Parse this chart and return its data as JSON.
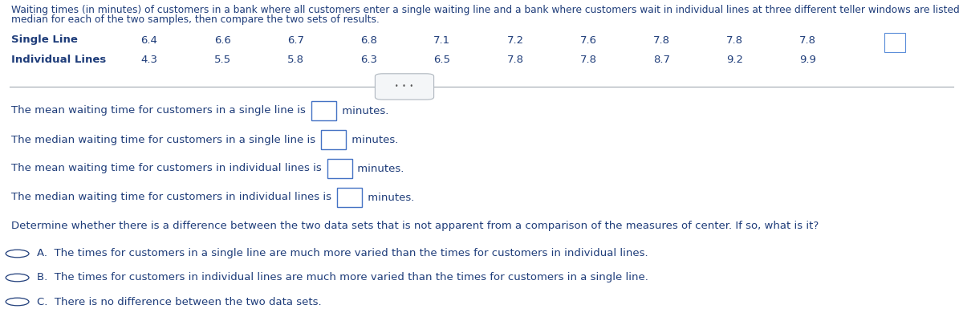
{
  "title_line1": "Waiting times (in minutes) of customers in a bank where all customers enter a single waiting line and a bank where customers wait in individual lines at three different teller windows are listed below. Find the mean and",
  "title_line2": "median for each of the two samples, then compare the two sets of results.",
  "single_line_label": "Single Line",
  "individual_lines_label": "Individual Lines",
  "single_line_values": [
    "6.4",
    "6.6",
    "6.7",
    "6.8",
    "7.1",
    "7.2",
    "7.6",
    "7.8",
    "7.8",
    "7.8"
  ],
  "individual_lines_values": [
    "4.3",
    "5.5",
    "5.8",
    "6.3",
    "6.5",
    "7.8",
    "7.8",
    "8.7",
    "9.2",
    "9.9"
  ],
  "q1_prefix": "The mean waiting time for customers in a single line is ",
  "q1_suffix": " minutes.",
  "q2_prefix": "The median waiting time for customers in a single line is ",
  "q2_suffix": " minutes.",
  "q3_prefix": "The mean waiting time for customers in individual lines is ",
  "q3_suffix": " minutes.",
  "q4_prefix": "The median waiting time for customers in individual lines is ",
  "q4_suffix": " minutes.",
  "determine_text": "Determine whether there is a difference between the two data sets that is not apparent from a comparison of the measures of center. If so, what is it?",
  "option_a": "A.  The times for customers in a single line are much more varied than the times for customers in individual lines.",
  "option_b": "B.  The times for customers in individual lines are much more varied than the times for customers in a single line.",
  "option_c": "C.  There is no difference between the two data sets.",
  "text_color": "#1f3d7a",
  "bg_color": "#ffffff",
  "line_color": "#a0a8b0",
  "box_edge_color": "#4472c4",
  "title_fontsize": 8.8,
  "label_fontsize": 9.5,
  "body_fontsize": 9.5,
  "small_icon_color": "#5b8dd9"
}
